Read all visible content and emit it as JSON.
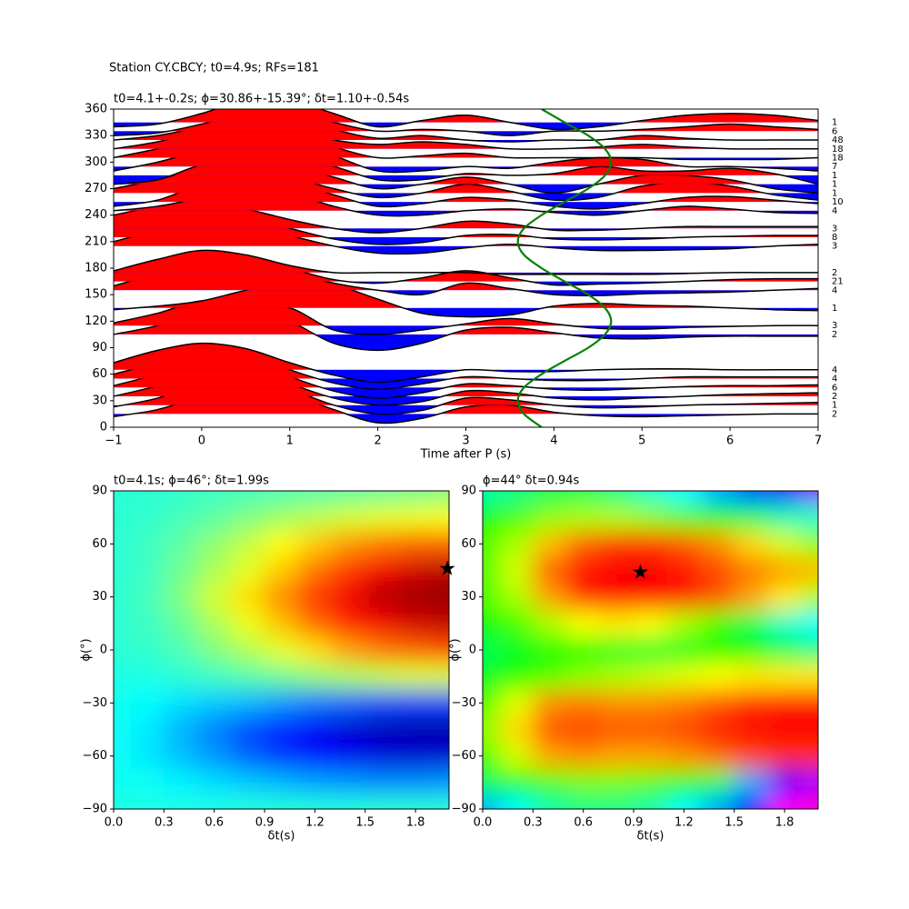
{
  "title": "Station CY.CBCY; t0=4.9s; RFs=181",
  "chart_data": [
    {
      "type": "wiggle",
      "title": "t0=4.1+-0.2s; ϕ=30.86+-15.39°; δt=1.10+-0.54s",
      "xlabel": "Time after P (s)",
      "xlim": [
        -1,
        7
      ],
      "xticks": [
        {
          "value": -1,
          "label": "−1"
        },
        0,
        1,
        2,
        3,
        4,
        5,
        6,
        7
      ],
      "ylim": [
        0,
        360
      ],
      "yticks": [
        0,
        30,
        60,
        90,
        120,
        150,
        180,
        210,
        240,
        270,
        300,
        330,
        360
      ],
      "positive_color": "#ff0000",
      "negative_color": "#0000ff",
      "line_color": "#000000",
      "x": [
        -1,
        -0.5,
        0,
        0.5,
        1,
        1.5,
        2,
        2.5,
        3,
        3.5,
        4,
        4.5,
        5,
        5.5,
        6,
        6.5,
        7
      ],
      "traces": [
        {
          "baz": 15,
          "count": "2",
          "values": [
            -3,
            5,
            20,
            30,
            22,
            5,
            -10,
            -5,
            8,
            10,
            2,
            -2,
            -3,
            -2,
            -1,
            0,
            0
          ]
        },
        {
          "baz": 25,
          "count": "1",
          "values": [
            -2,
            8,
            25,
            30,
            18,
            0,
            -10,
            -6,
            8,
            6,
            0,
            -3,
            -2,
            0,
            1,
            2,
            3
          ]
        },
        {
          "baz": 35,
          "count": "2",
          "values": [
            0,
            12,
            28,
            28,
            14,
            -2,
            -10,
            -6,
            6,
            4,
            -2,
            -4,
            -2,
            0,
            2,
            3,
            4
          ]
        },
        {
          "baz": 45,
          "count": "6",
          "values": [
            2,
            15,
            30,
            28,
            12,
            -4,
            -12,
            -6,
            4,
            2,
            -2,
            -3,
            -1,
            1,
            2,
            2,
            3
          ]
        },
        {
          "baz": 55,
          "count": "4",
          "values": [
            5,
            18,
            32,
            28,
            10,
            -5,
            -12,
            -6,
            2,
            0,
            -2,
            -2,
            0,
            2,
            2,
            2,
            2
          ]
        },
        {
          "baz": 65,
          "count": "4",
          "values": [
            8,
            22,
            30,
            24,
            8,
            -6,
            -14,
            -8,
            0,
            -2,
            -2,
            0,
            1,
            1,
            0,
            0,
            0
          ]
        },
        {
          "baz": 105,
          "count": "2",
          "values": [
            0,
            10,
            25,
            30,
            15,
            -10,
            -18,
            -10,
            5,
            8,
            2,
            -4,
            -5,
            -3,
            -2,
            -2,
            -2
          ]
        },
        {
          "baz": 115,
          "count": "3",
          "values": [
            3,
            14,
            28,
            22,
            20,
            -5,
            -10,
            -5,
            2,
            8,
            2,
            -3,
            -4,
            -2,
            -1,
            0,
            0
          ]
        },
        {
          "baz": 135,
          "count": "1",
          "values": [
            -2,
            2,
            8,
            20,
            30,
            26,
            10,
            -6,
            -10,
            -8,
            2,
            5,
            3,
            2,
            0,
            -2,
            -3
          ]
        },
        {
          "baz": 155,
          "count": "4",
          "values": [
            5,
            18,
            25,
            30,
            20,
            8,
            0,
            -5,
            8,
            2,
            -5,
            -6,
            -4,
            -3,
            -2,
            0,
            2
          ]
        },
        {
          "baz": 165,
          "count": "21",
          "values": [
            10,
            22,
            30,
            28,
            15,
            2,
            -2,
            4,
            12,
            4,
            -4,
            -3,
            -2,
            0,
            2,
            3,
            3
          ]
        },
        {
          "baz": 175,
          "count": "2",
          "values": [
            2,
            15,
            25,
            20,
            8,
            0,
            0,
            0,
            0,
            -2,
            -2,
            -2,
            -2,
            -1,
            0,
            0,
            0
          ]
        },
        {
          "baz": 205,
          "count": "3",
          "values": [
            5,
            18,
            28,
            25,
            12,
            0,
            -8,
            -8,
            -2,
            2,
            -2,
            -5,
            -5,
            -4,
            -3,
            0,
            2
          ]
        },
        {
          "baz": 215,
          "count": "8",
          "values": [
            12,
            22,
            28,
            22,
            10,
            -2,
            -8,
            -6,
            2,
            3,
            -2,
            -3,
            -2,
            0,
            1,
            2,
            2
          ]
        },
        {
          "baz": 225,
          "count": "3",
          "values": [
            15,
            25,
            30,
            22,
            10,
            0,
            -5,
            0,
            8,
            5,
            -2,
            -2,
            0,
            2,
            2,
            2,
            2
          ]
        },
        {
          "baz": 245,
          "count": "4",
          "values": [
            0,
            5,
            15,
            28,
            20,
            5,
            -5,
            -5,
            0,
            2,
            -2,
            -5,
            0,
            5,
            2,
            -2,
            -3
          ]
        },
        {
          "baz": 255,
          "count": "10",
          "values": [
            -5,
            2,
            20,
            30,
            22,
            8,
            -5,
            -2,
            5,
            2,
            -5,
            -8,
            -2,
            5,
            6,
            2,
            -2
          ]
        },
        {
          "baz": 265,
          "count": "1",
          "values": [
            5,
            15,
            28,
            30,
            18,
            5,
            -5,
            0,
            10,
            2,
            -8,
            -5,
            8,
            12,
            8,
            -2,
            -8
          ]
        },
        {
          "baz": 275,
          "count": "1",
          "values": [
            0,
            5,
            20,
            28,
            22,
            8,
            -5,
            0,
            8,
            0,
            -10,
            0,
            10,
            10,
            5,
            -5,
            -10
          ]
        },
        {
          "baz": 285,
          "count": "1",
          "values": [
            -10,
            -5,
            12,
            18,
            18,
            10,
            -5,
            -5,
            2,
            0,
            2,
            10,
            5,
            5,
            8,
            2,
            -10
          ]
        },
        {
          "baz": 295,
          "count": "7",
          "values": [
            -5,
            5,
            18,
            25,
            25,
            12,
            -5,
            -5,
            0,
            -2,
            5,
            10,
            8,
            0,
            0,
            -2,
            -5
          ]
        },
        {
          "baz": 305,
          "count": "18",
          "values": [
            0,
            10,
            20,
            28,
            25,
            12,
            0,
            2,
            5,
            0,
            0,
            0,
            0,
            -2,
            -2,
            -2,
            0
          ]
        },
        {
          "baz": 315,
          "count": "18",
          "values": [
            0,
            8,
            20,
            28,
            22,
            10,
            5,
            8,
            5,
            0,
            0,
            2,
            5,
            2,
            0,
            0,
            0
          ]
        },
        {
          "baz": 325,
          "count": "48",
          "values": [
            0,
            5,
            15,
            25,
            25,
            12,
            2,
            5,
            0,
            -2,
            0,
            0,
            5,
            2,
            0,
            0,
            0
          ]
        },
        {
          "baz": 335,
          "count": "6",
          "values": [
            -5,
            -2,
            8,
            20,
            22,
            10,
            0,
            2,
            0,
            -5,
            0,
            0,
            2,
            5,
            8,
            5,
            2
          ]
        },
        {
          "baz": 345,
          "count": "1",
          "values": [
            -5,
            -2,
            10,
            25,
            25,
            10,
            -5,
            2,
            8,
            0,
            -8,
            -5,
            2,
            8,
            10,
            8,
            2
          ]
        }
      ],
      "t0_curve": {
        "color": "#008000",
        "baz": [
          0,
          15,
          30,
          45,
          60,
          75,
          90,
          105,
          120,
          135,
          150,
          165,
          180,
          195,
          210,
          225,
          240,
          255,
          270,
          285,
          300,
          315,
          330,
          345,
          360
        ],
        "time": [
          3.86,
          3.66,
          3.59,
          3.66,
          3.86,
          4.12,
          4.39,
          4.58,
          4.65,
          4.58,
          4.39,
          4.12,
          3.86,
          3.66,
          3.59,
          3.66,
          3.86,
          4.12,
          4.39,
          4.58,
          4.65,
          4.58,
          4.39,
          4.12,
          3.86
        ]
      }
    },
    {
      "type": "heatmap",
      "title": "t0=4.1s; ϕ=46°; δt=1.99s",
      "xlabel": "δt(s)",
      "ylabel": "ϕ(°)",
      "colormap": "jet",
      "xlim": [
        0,
        2
      ],
      "ylim": [
        -90,
        90
      ],
      "xticks": [
        {
          "value": 0,
          "label": "0.0"
        },
        0.3,
        0.6,
        0.9,
        1.2,
        1.5,
        1.8
      ],
      "yticks": [
        {
          "value": -90,
          "label": "−90"
        },
        {
          "value": -60,
          "label": "−60"
        },
        {
          "value": -30,
          "label": "−30"
        },
        0,
        30,
        60,
        90
      ],
      "x": [
        0,
        0.2,
        0.4,
        0.6,
        0.8,
        1.0,
        1.2,
        1.4,
        1.6,
        1.8,
        2.0
      ],
      "y": [
        90,
        75,
        60,
        45,
        30,
        15,
        0,
        -15,
        -30,
        -45,
        -60,
        -75,
        -90
      ],
      "z": [
        [
          0.4,
          0.4,
          0.41,
          0.42,
          0.43,
          0.44,
          0.45,
          0.46,
          0.47,
          0.48,
          0.5
        ],
        [
          0.4,
          0.41,
          0.43,
          0.46,
          0.5,
          0.54,
          0.57,
          0.6,
          0.62,
          0.63,
          0.64
        ],
        [
          0.4,
          0.42,
          0.46,
          0.52,
          0.58,
          0.65,
          0.7,
          0.75,
          0.78,
          0.8,
          0.8
        ],
        [
          0.4,
          0.42,
          0.48,
          0.55,
          0.62,
          0.7,
          0.78,
          0.84,
          0.9,
          0.93,
          0.95
        ],
        [
          0.4,
          0.43,
          0.5,
          0.6,
          0.68,
          0.76,
          0.84,
          0.9,
          0.95,
          0.97,
          0.98
        ],
        [
          0.4,
          0.42,
          0.47,
          0.55,
          0.63,
          0.71,
          0.79,
          0.86,
          0.9,
          0.93,
          0.94
        ],
        [
          0.4,
          0.41,
          0.44,
          0.5,
          0.56,
          0.62,
          0.68,
          0.74,
          0.78,
          0.8,
          0.82
        ],
        [
          0.38,
          0.38,
          0.4,
          0.42,
          0.45,
          0.48,
          0.52,
          0.55,
          0.58,
          0.6,
          0.6
        ],
        [
          0.37,
          0.35,
          0.32,
          0.3,
          0.28,
          0.25,
          0.22,
          0.2,
          0.18,
          0.17,
          0.17
        ],
        [
          0.36,
          0.33,
          0.28,
          0.23,
          0.18,
          0.14,
          0.1,
          0.07,
          0.05,
          0.04,
          0.04
        ],
        [
          0.36,
          0.33,
          0.29,
          0.25,
          0.2,
          0.16,
          0.13,
          0.1,
          0.08,
          0.07,
          0.07
        ],
        [
          0.37,
          0.36,
          0.34,
          0.32,
          0.3,
          0.28,
          0.26,
          0.25,
          0.24,
          0.24,
          0.25
        ],
        [
          0.38,
          0.38,
          0.38,
          0.38,
          0.39,
          0.39,
          0.39,
          0.39,
          0.4,
          0.4,
          0.4
        ]
      ],
      "star": {
        "x": 1.99,
        "y": 46
      }
    },
    {
      "type": "heatmap",
      "title": "ϕ=44° δt=0.94s",
      "xlabel": "δt(s)",
      "ylabel": "ϕ(°)",
      "colormap": "gist_rainbow_r",
      "xlim": [
        0,
        2
      ],
      "ylim": [
        -90,
        90
      ],
      "xticks": [
        {
          "value": 0,
          "label": "0.0"
        },
        0.3,
        0.6,
        0.9,
        1.2,
        1.5,
        1.8
      ],
      "yticks": [
        {
          "value": -90,
          "label": "−90"
        },
        {
          "value": -60,
          "label": "−60"
        },
        {
          "value": -30,
          "label": "−30"
        },
        0,
        30,
        60,
        90
      ],
      "x": [
        0,
        0.2,
        0.4,
        0.6,
        0.8,
        1.0,
        1.2,
        1.4,
        1.6,
        1.8,
        2.0
      ],
      "y": [
        90,
        75,
        60,
        45,
        30,
        15,
        0,
        -15,
        -30,
        -45,
        -60,
        -75,
        -90
      ],
      "z": [
        [
          0.4,
          0.42,
          0.45,
          0.45,
          0.42,
          0.38,
          0.35,
          0.3,
          0.25,
          0.18,
          0.12
        ],
        [
          0.5,
          0.55,
          0.6,
          0.62,
          0.62,
          0.6,
          0.56,
          0.5,
          0.45,
          0.4,
          0.38
        ],
        [
          0.55,
          0.62,
          0.75,
          0.85,
          0.9,
          0.9,
          0.86,
          0.8,
          0.72,
          0.65,
          0.6
        ],
        [
          0.55,
          0.65,
          0.85,
          0.95,
          1.0,
          0.98,
          0.94,
          0.88,
          0.82,
          0.78,
          0.75
        ],
        [
          0.55,
          0.62,
          0.78,
          0.9,
          0.95,
          0.95,
          0.92,
          0.86,
          0.78,
          0.7,
          0.62
        ],
        [
          0.5,
          0.55,
          0.62,
          0.68,
          0.7,
          0.68,
          0.62,
          0.55,
          0.45,
          0.38,
          0.35
        ],
        [
          0.45,
          0.48,
          0.5,
          0.5,
          0.48,
          0.47,
          0.48,
          0.5,
          0.5,
          0.45,
          0.42
        ],
        [
          0.48,
          0.52,
          0.56,
          0.6,
          0.62,
          0.64,
          0.66,
          0.68,
          0.7,
          0.7,
          0.7
        ],
        [
          0.55,
          0.66,
          0.8,
          0.82,
          0.8,
          0.8,
          0.82,
          0.86,
          0.9,
          0.92,
          0.92
        ],
        [
          0.6,
          0.72,
          0.86,
          0.88,
          0.86,
          0.86,
          0.88,
          0.92,
          0.96,
          0.98,
          0.98
        ],
        [
          0.55,
          0.65,
          0.78,
          0.8,
          0.78,
          0.78,
          0.8,
          0.84,
          0.88,
          0.9,
          0.9
        ],
        [
          0.45,
          0.5,
          0.55,
          0.58,
          0.58,
          0.56,
          0.52,
          0.45,
          0.3,
          0.15,
          0.1
        ],
        [
          0.3,
          0.35,
          0.4,
          0.42,
          0.42,
          0.4,
          0.35,
          0.3,
          0.2,
          0.05,
          0.02
        ]
      ],
      "star": {
        "x": 0.94,
        "y": 44
      }
    }
  ]
}
